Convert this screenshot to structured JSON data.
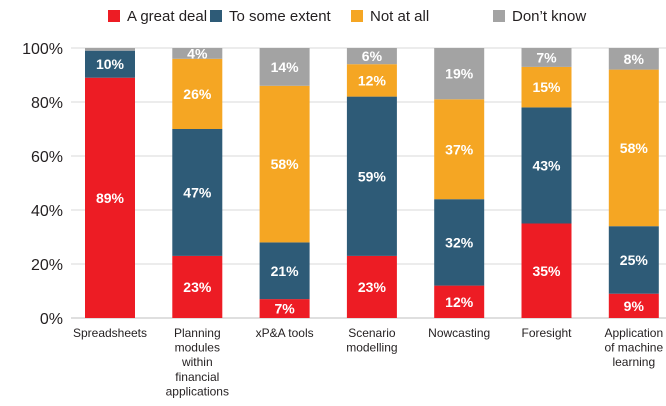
{
  "chart_data": {
    "type": "bar",
    "stacked": true,
    "categories": [
      [
        "Spreadsheets"
      ],
      [
        "Planning",
        "modules",
        "within",
        "financial",
        "applications"
      ],
      [
        "xP&A tools"
      ],
      [
        "Scenario",
        "modelling"
      ],
      [
        "Nowcasting"
      ],
      [
        "Foresight"
      ],
      [
        "Application",
        "of machine",
        "learning"
      ]
    ],
    "series": [
      {
        "name": "A great deal",
        "color": "#ed1c24",
        "values": [
          89,
          23,
          7,
          23,
          12,
          35,
          9
        ],
        "labels": [
          "89%",
          "23%",
          "7%",
          "23%",
          "12%",
          "35%",
          "9%"
        ]
      },
      {
        "name": "To some extent",
        "color": "#2e5b77",
        "values": [
          10,
          47,
          21,
          59,
          32,
          43,
          25
        ],
        "labels": [
          "10%",
          "47%",
          "21%",
          "59%",
          "32%",
          "43%",
          "25%"
        ]
      },
      {
        "name": "Not at all",
        "color": "#f5a623",
        "values": [
          0,
          26,
          58,
          12,
          37,
          15,
          58
        ],
        "labels": [
          "",
          "26%",
          "58%",
          "12%",
          "37%",
          "15%",
          "58%"
        ]
      },
      {
        "name": "Don’t know",
        "color": "#a3a3a3",
        "values": [
          1,
          4,
          14,
          6,
          19,
          7,
          8
        ],
        "labels": [
          "",
          "4%",
          "14%",
          "6%",
          "19%",
          "7%",
          "8%"
        ]
      }
    ],
    "yticks": [
      "0%",
      "20%",
      "40%",
      "60%",
      "80%",
      "100%"
    ],
    "ylim": [
      0,
      100
    ],
    "grid": true,
    "legend_position": "top"
  }
}
